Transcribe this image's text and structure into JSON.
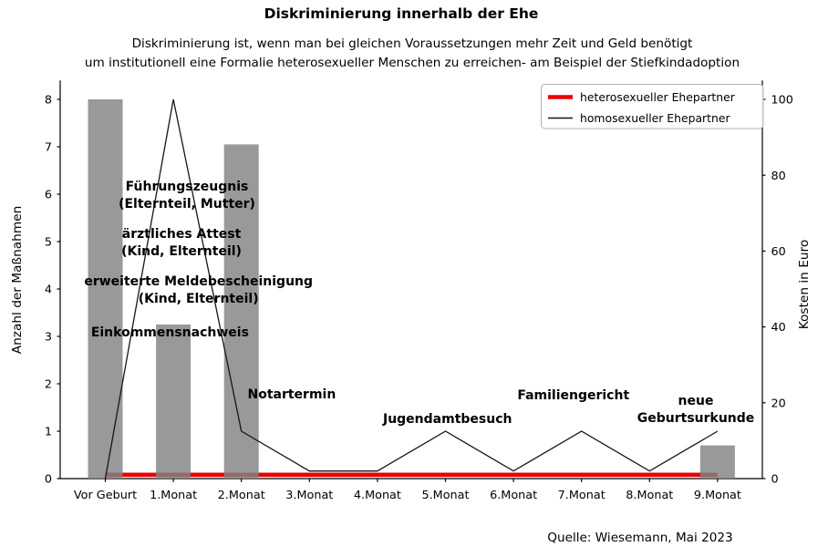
{
  "title": "Diskriminierung innerhalb der Ehe",
  "subtitle_line1": "Diskriminierung ist, wenn man bei gleichen Voraussetzungen mehr Zeit und Geld benötigt",
  "subtitle_line2": "um institutionell eine Formalie heterosexueller Menschen zu erreichen- am Beispiel der Stiefkindadoption",
  "source": "Quelle: Wiesemann, Mai 2023",
  "colors": {
    "bar": "#838383",
    "hetero_line": "#e80000",
    "homo_line": "#151515",
    "spine": "#000000",
    "legend_border": "#b3b3b3"
  },
  "chart_data": {
    "type": "combo-bar-line",
    "categories": [
      "Vor Geburt",
      "1.Monat",
      "2.Monat",
      "3.Monat",
      "4.Monat",
      "5.Monat",
      "6.Monat",
      "7.Monat",
      "8.Monat",
      "9.Monat"
    ],
    "bars": {
      "name": "Anzahl der Maßnahmen",
      "axis": "left",
      "color": "#838383",
      "values": [
        8,
        3.25,
        7.05,
        0,
        0,
        0,
        0,
        0,
        0,
        0.7
      ]
    },
    "series": [
      {
        "name": "heterosexueller Ehepartner",
        "axis": "right",
        "color": "#e80000",
        "line_width": 4.6,
        "values": [
          1,
          1,
          1,
          1,
          1,
          1,
          1,
          1,
          1,
          1
        ]
      },
      {
        "name": "homosexueller Ehepartner",
        "axis": "right",
        "color": "#151515",
        "line_width": 1.3,
        "values": [
          0,
          100,
          12.5,
          2,
          2,
          12.5,
          2,
          12.5,
          2,
          12.5
        ]
      }
    ],
    "left_axis": {
      "label": "Anzahl der Maßnahmen",
      "ticks": [
        0,
        1,
        2,
        3,
        4,
        5,
        6,
        7,
        8
      ],
      "range": [
        0,
        8.4
      ]
    },
    "right_axis": {
      "label": "Kosten in Euro",
      "ticks": [
        0,
        20,
        40,
        60,
        80,
        100
      ],
      "range": [
        0,
        105
      ]
    },
    "legend": {
      "position": "upper-right",
      "entries": [
        "heterosexueller Ehepartner",
        "homosexueller Ehepartner"
      ]
    },
    "grid": false,
    "annotations": [
      {
        "lines": [
          "Führungszeugnis",
          "(Elternteil, Mutter)"
        ],
        "x": 1.2,
        "y": 6.08
      },
      {
        "lines": [
          "ärztliches Attest",
          "(Kind, Elternteil)"
        ],
        "x": 1.12,
        "y": 5.08
      },
      {
        "lines": [
          "erweiterte Meldebescheinigung",
          "(Kind, Elternteil)"
        ],
        "x": 1.37,
        "y": 4.08
      },
      {
        "lines": [
          "Einkommensnachweis"
        ],
        "x": 0.95,
        "y": 3.0
      },
      {
        "lines": [
          "Notartermin"
        ],
        "x": 2.74,
        "y": 1.69
      },
      {
        "lines": [
          "Jugendamtbesuch"
        ],
        "x": 5.03,
        "y": 1.17
      },
      {
        "lines": [
          "Familiengericht"
        ],
        "x": 6.88,
        "y": 1.67
      },
      {
        "lines": [
          "neue",
          "Geburtsurkunde"
        ],
        "x": 8.68,
        "y": 1.56
      }
    ]
  }
}
